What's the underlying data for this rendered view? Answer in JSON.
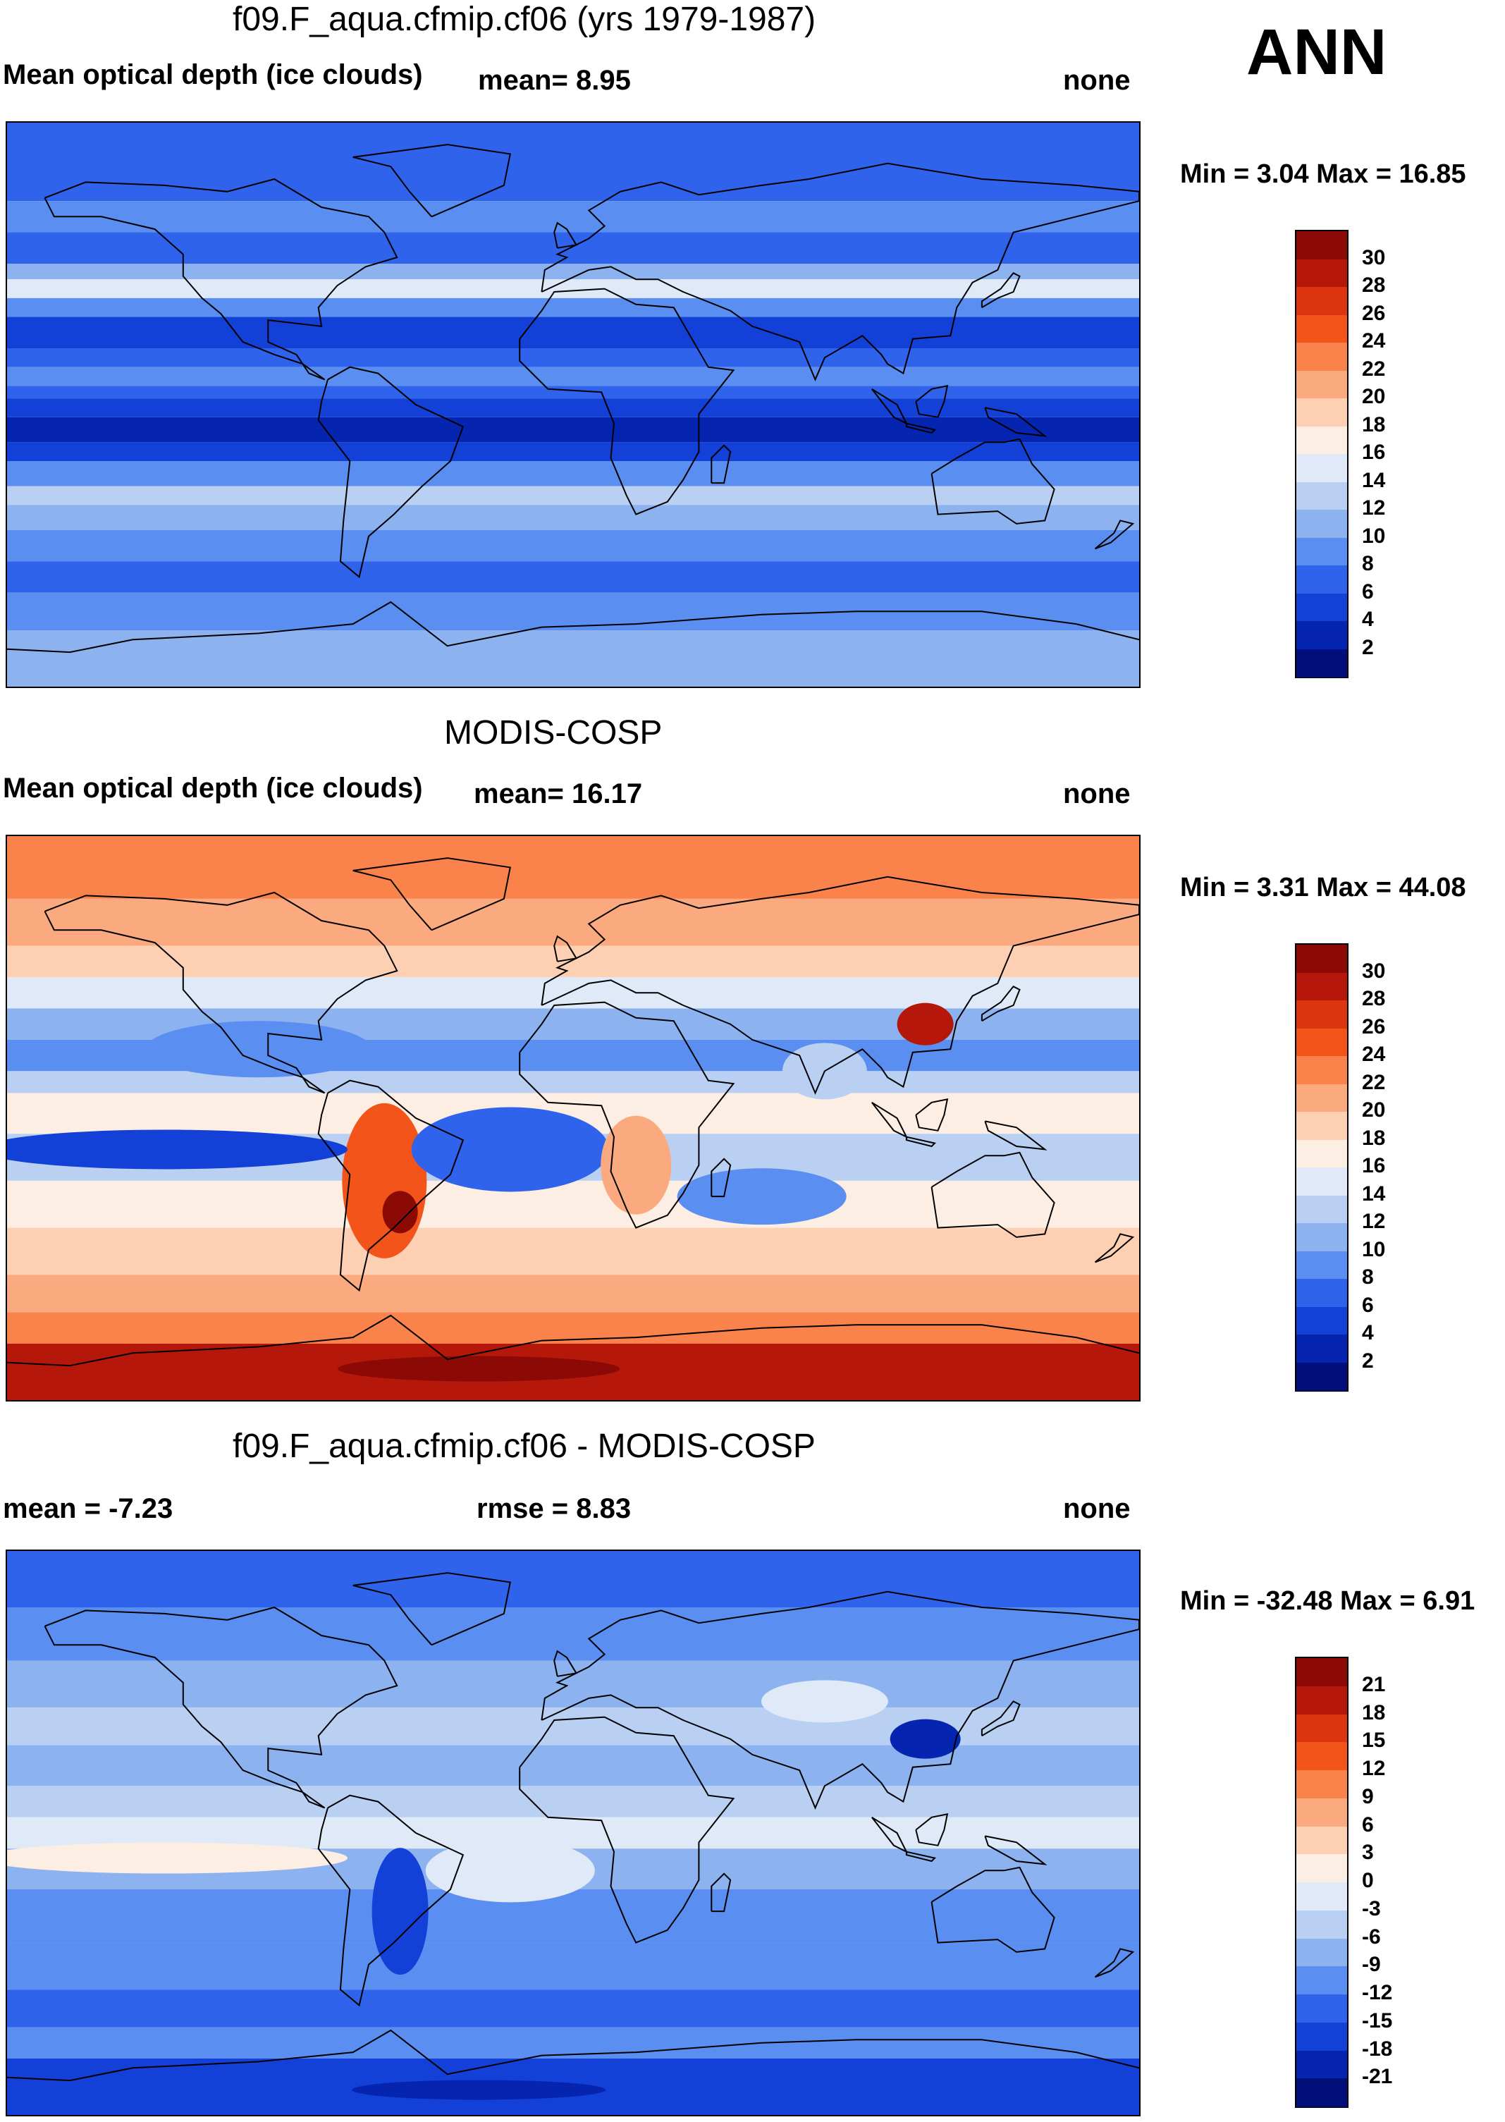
{
  "season": "ANN",
  "panels": [
    {
      "title": "f09.F_aqua.cfmip.cf06 (yrs 1979-1987)",
      "left_text": "Mean optical depth (ice clouds)",
      "center_text": "mean=   8.95",
      "right_text": "none",
      "minmax": "Min =   3.04 Max =  16.85",
      "map_style": "model"
    },
    {
      "title": "MODIS-COSP",
      "left_text": "Mean optical depth (ice clouds)",
      "center_text": "mean=  16.17",
      "right_text": "none",
      "minmax": "Min =   3.31 Max =  44.08",
      "map_style": "obs"
    },
    {
      "title": "f09.F_aqua.cfmip.cf06 - MODIS-COSP",
      "left_text": "mean =  -7.23",
      "center_text": "rmse =   8.83",
      "right_text": "none",
      "minmax": "Min = -32.48 Max =   6.91",
      "map_style": "diff"
    }
  ],
  "colorbars": [
    {
      "labels": [
        "30",
        "28",
        "26",
        "24",
        "22",
        "20",
        "18",
        "16",
        "14",
        "12",
        "10",
        "8",
        "6",
        "4",
        "2"
      ],
      "colors": [
        "#8b0a05",
        "#b5170a",
        "#dc3510",
        "#f2541a",
        "#f9834a",
        "#fbaa80",
        "#fdd0b4",
        "#fdeee3",
        "#dfe9f7",
        "#b9d0f2",
        "#8cb2f0",
        "#5a8ef0",
        "#2f63eb",
        "#1340d6",
        "#0525b0",
        "#020f7a"
      ]
    },
    {
      "labels": [
        "30",
        "28",
        "26",
        "24",
        "22",
        "20",
        "18",
        "16",
        "14",
        "12",
        "10",
        "8",
        "6",
        "4",
        "2"
      ],
      "colors": [
        "#8b0a05",
        "#b5170a",
        "#dc3510",
        "#f2541a",
        "#f9834a",
        "#fbaa80",
        "#fdd0b4",
        "#fdeee3",
        "#dfe9f7",
        "#b9d0f2",
        "#8cb2f0",
        "#5a8ef0",
        "#2f63eb",
        "#1340d6",
        "#0525b0",
        "#020f7a"
      ]
    },
    {
      "labels": [
        "21",
        "18",
        "15",
        "12",
        "9",
        "6",
        "3",
        "0",
        "-3",
        "-6",
        "-9",
        "-12",
        "-15",
        "-18",
        "-21"
      ],
      "colors": [
        "#8b0a05",
        "#b5170a",
        "#dc3510",
        "#f2541a",
        "#f9834a",
        "#fbaa80",
        "#fdd0b4",
        "#fdeee3",
        "#dfe9f7",
        "#b9d0f2",
        "#8cb2f0",
        "#5a8ef0",
        "#2f63eb",
        "#1340d6",
        "#0525b0",
        "#020f7a"
      ]
    }
  ]
}
